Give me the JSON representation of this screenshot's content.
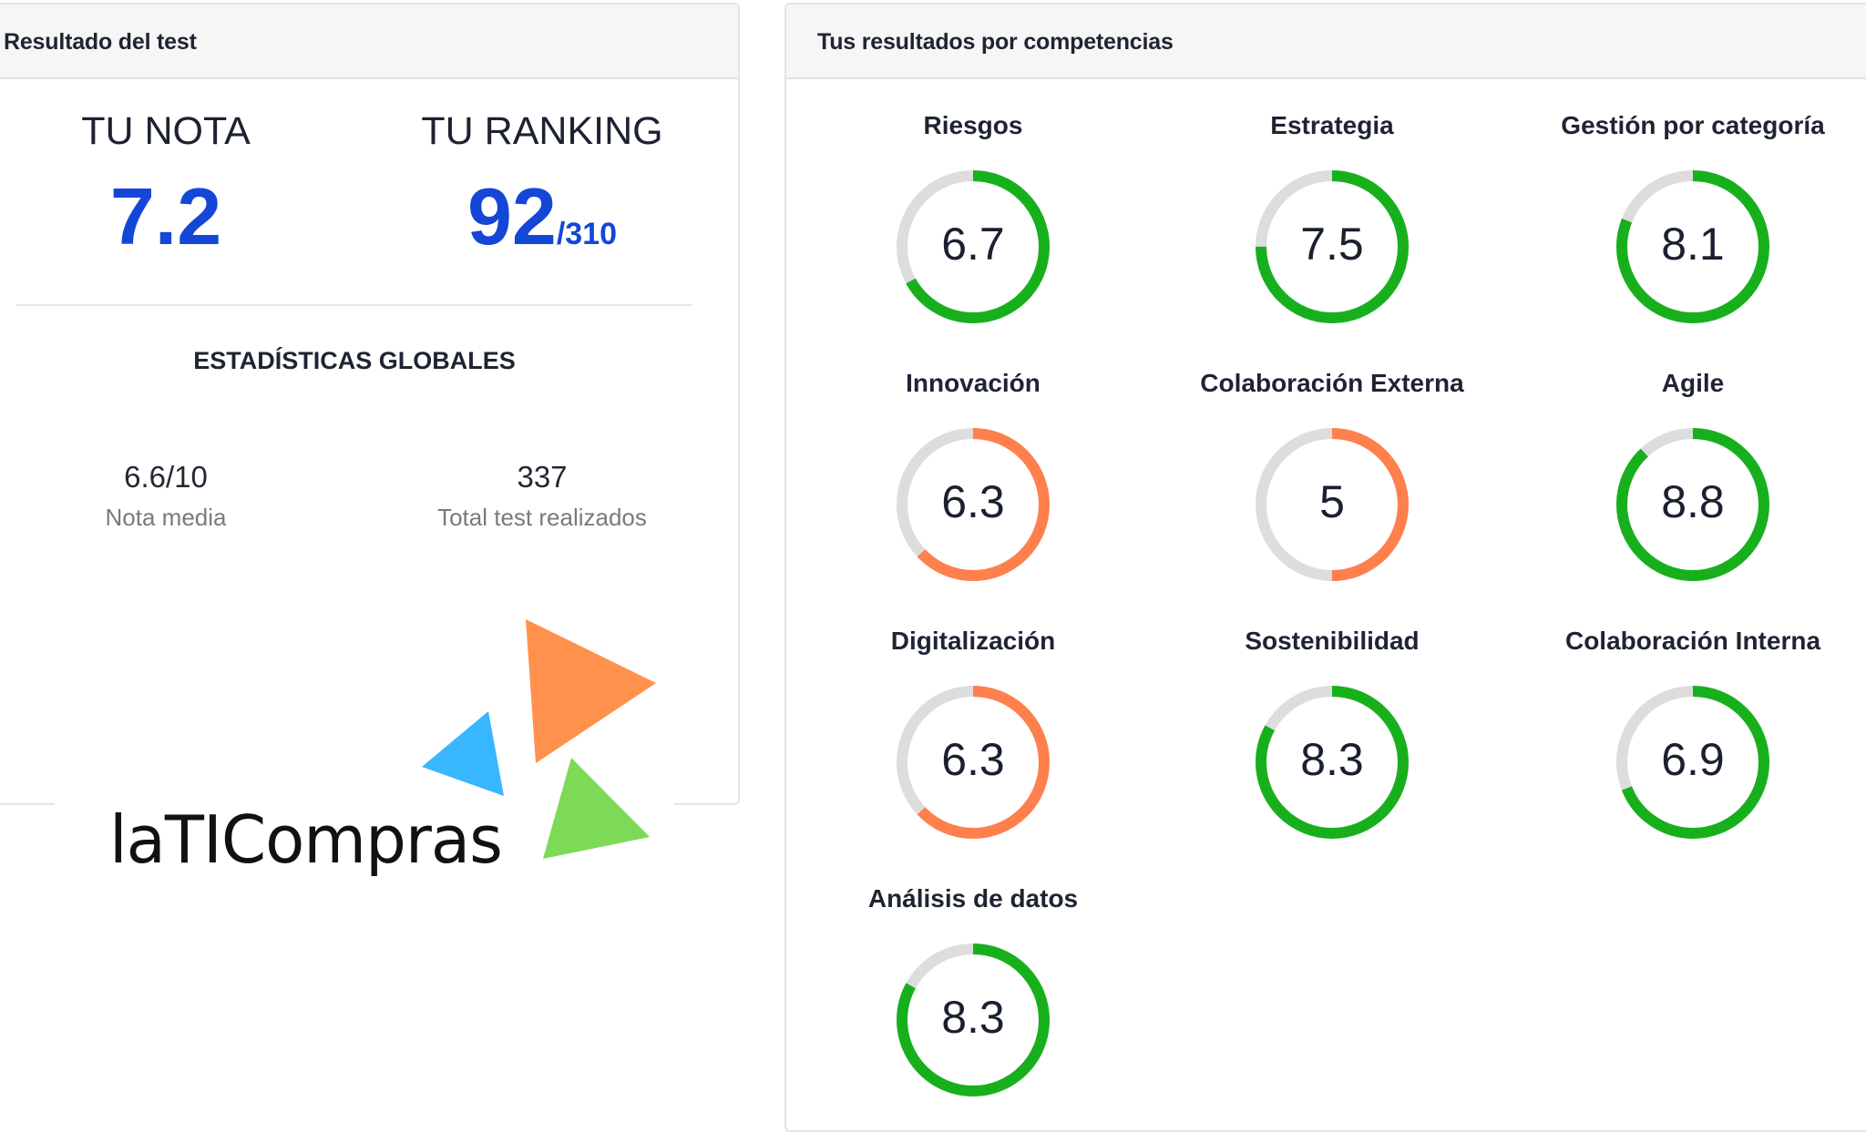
{
  "left_card": {
    "title": "Resultado del test",
    "score": {
      "label": "TU NOTA",
      "value": "7.2"
    },
    "ranking": {
      "label": "TU RANKING",
      "value": "92",
      "total": "/310"
    },
    "global_stats": {
      "title": "ESTADÍSTICAS GLOBALES",
      "items": [
        {
          "value": "6.6/10",
          "label": "Nota media"
        },
        {
          "value": "337",
          "label": "Total test realizados"
        }
      ]
    },
    "logo": {
      "text": "laTICompras",
      "colors": {
        "orange": "#ff914d",
        "blue": "#38b6ff",
        "green": "#7ed957"
      }
    }
  },
  "right_card": {
    "title": "Tus resultados por competencias",
    "colors": {
      "good": "#17b01c",
      "warn": "#ff7f4d",
      "track": "#dddddd"
    },
    "competencies": [
      {
        "label": "Riesgos",
        "value": "6.7",
        "status": "good"
      },
      {
        "label": "Estrategia",
        "value": "7.5",
        "status": "good"
      },
      {
        "label": "Gestión por categoría",
        "value": "8.1",
        "status": "good"
      },
      {
        "label": "Innovación",
        "value": "6.3",
        "status": "warn"
      },
      {
        "label": "Colaboración Externa",
        "value": "5",
        "status": "warn"
      },
      {
        "label": "Agile",
        "value": "8.8",
        "status": "good"
      },
      {
        "label": "Digitalización",
        "value": "6.3",
        "status": "warn"
      },
      {
        "label": "Sostenibilidad",
        "value": "8.3",
        "status": "good"
      },
      {
        "label": "Colaboración Interna",
        "value": "6.9",
        "status": "good"
      },
      {
        "label": "Análisis de datos",
        "value": "8.3",
        "status": "good"
      }
    ]
  }
}
